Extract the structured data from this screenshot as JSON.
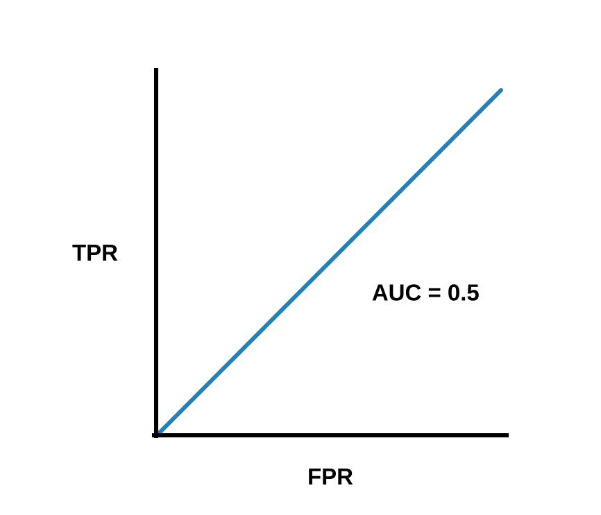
{
  "chart_data": {
    "type": "line",
    "title": "",
    "xlabel": "FPR",
    "ylabel": "TPR",
    "xlim": [
      0,
      1
    ],
    "ylim": [
      0,
      1
    ],
    "grid": false,
    "ticks": false,
    "series": [
      {
        "x": [
          0,
          1
        ],
        "y": [
          0,
          1
        ],
        "color": "#2680b8"
      }
    ],
    "annotations": [
      {
        "text": "AUC = 0.5",
        "x": 0.78,
        "y": 0.41
      }
    ]
  },
  "colors": {
    "axis": "#000000",
    "line": "#2680b8",
    "background": "#ffffff"
  }
}
